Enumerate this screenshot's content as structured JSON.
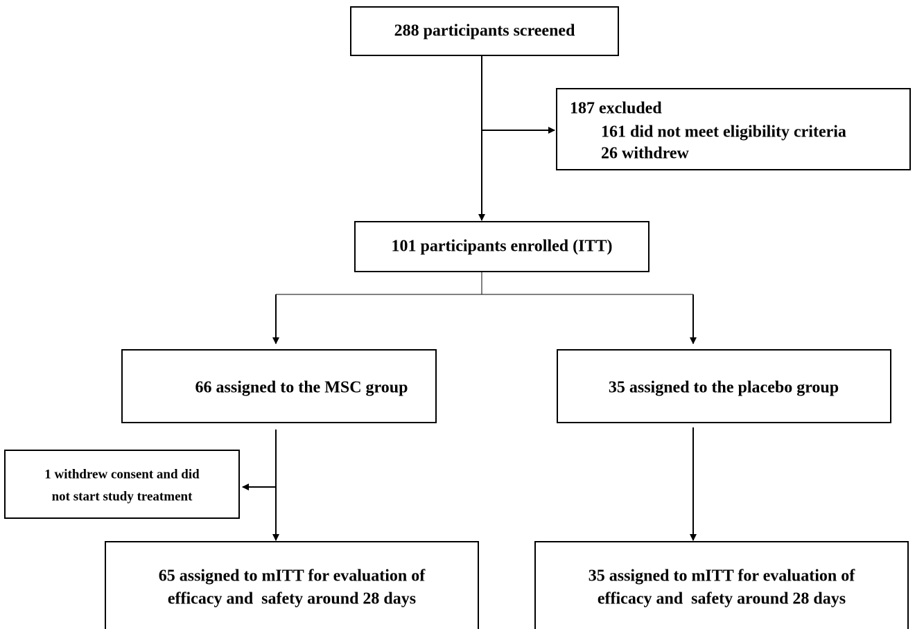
{
  "nodes": [
    {
      "label": "288 participants screened"
    },
    {
      "lines": [
        "187 excluded",
        "161 did not meet eligibility criteria",
        "26 withdrew"
      ]
    },
    {
      "label": "101 participants enrolled (ITT)"
    },
    {
      "label": "66 assigned to the MSC group"
    },
    {
      "label": "35 assigned to the placebo group"
    },
    {
      "lines": [
        "1 withdrew consent and did",
        "not start study treatment"
      ]
    },
    {
      "lines": [
        "65 assigned to mITT for evaluation of",
        "efficacy and  safety around 28 days"
      ]
    },
    {
      "lines": [
        "35 assigned to mITT for evaluation of",
        "efficacy and  safety around 28 days"
      ]
    }
  ]
}
